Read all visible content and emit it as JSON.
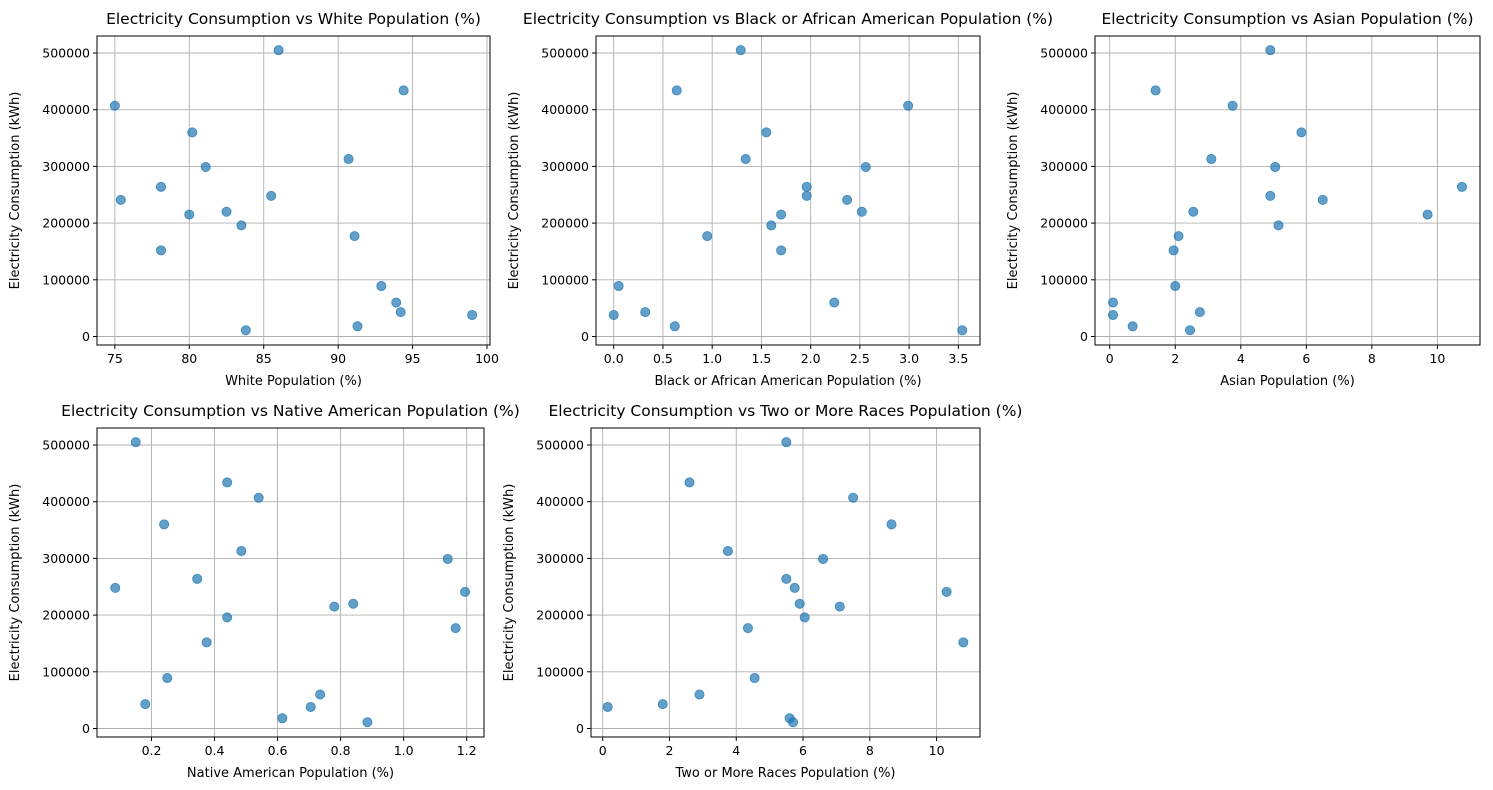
{
  "chart_data": [
    {
      "type": "scatter",
      "title": "Electricity Consumption vs White Population (%)",
      "xlabel": "White Population (%)",
      "ylabel": "Electricity Consumption (kWh)",
      "xlim": [
        73.8,
        100.2
      ],
      "ylim": [
        -15000,
        530000
      ],
      "xticks": [
        75,
        80,
        85,
        90,
        95,
        100
      ],
      "yticks": [
        0,
        100000,
        200000,
        300000,
        400000,
        500000
      ],
      "grid": true,
      "color": "#1f77b4",
      "points": [
        {
          "x": 75.0,
          "y": 407000
        },
        {
          "x": 75.4,
          "y": 241000
        },
        {
          "x": 78.1,
          "y": 264000
        },
        {
          "x": 78.1,
          "y": 152000
        },
        {
          "x": 80.0,
          "y": 215000
        },
        {
          "x": 80.2,
          "y": 360000
        },
        {
          "x": 81.1,
          "y": 299000
        },
        {
          "x": 82.5,
          "y": 220000
        },
        {
          "x": 83.5,
          "y": 196000
        },
        {
          "x": 83.8,
          "y": 11000
        },
        {
          "x": 85.5,
          "y": 248000
        },
        {
          "x": 86.0,
          "y": 505000
        },
        {
          "x": 90.7,
          "y": 313000
        },
        {
          "x": 91.1,
          "y": 177000
        },
        {
          "x": 91.3,
          "y": 18000
        },
        {
          "x": 92.9,
          "y": 89000
        },
        {
          "x": 93.9,
          "y": 60000
        },
        {
          "x": 94.2,
          "y": 43000
        },
        {
          "x": 94.4,
          "y": 434000
        },
        {
          "x": 99.0,
          "y": 38000
        }
      ]
    },
    {
      "type": "scatter",
      "title": "Electricity Consumption vs Black or African American Population (%)",
      "xlabel": "Black or African American Population (%)",
      "ylabel": "Electricity Consumption (kWh)",
      "xlim": [
        -0.18,
        3.72
      ],
      "ylim": [
        -15000,
        530000
      ],
      "xticks": [
        0.0,
        0.5,
        1.0,
        1.5,
        2.0,
        2.5,
        3.0,
        3.5
      ],
      "xtick_labels": [
        "0.0",
        "0.5",
        "1.0",
        "1.5",
        "2.0",
        "2.5",
        "3.0",
        "3.5"
      ],
      "yticks": [
        0,
        100000,
        200000,
        300000,
        400000,
        500000
      ],
      "grid": true,
      "color": "#1f77b4",
      "points": [
        {
          "x": 0.0,
          "y": 38000
        },
        {
          "x": 0.05,
          "y": 89000
        },
        {
          "x": 0.32,
          "y": 43000
        },
        {
          "x": 0.62,
          "y": 18000
        },
        {
          "x": 0.64,
          "y": 434000
        },
        {
          "x": 0.95,
          "y": 177000
        },
        {
          "x": 1.29,
          "y": 505000
        },
        {
          "x": 1.34,
          "y": 313000
        },
        {
          "x": 1.55,
          "y": 360000
        },
        {
          "x": 1.6,
          "y": 196000
        },
        {
          "x": 1.7,
          "y": 215000
        },
        {
          "x": 1.7,
          "y": 152000
        },
        {
          "x": 1.96,
          "y": 264000
        },
        {
          "x": 1.96,
          "y": 248000
        },
        {
          "x": 2.24,
          "y": 60000
        },
        {
          "x": 2.37,
          "y": 241000
        },
        {
          "x": 2.52,
          "y": 220000
        },
        {
          "x": 2.56,
          "y": 299000
        },
        {
          "x": 2.99,
          "y": 407000
        },
        {
          "x": 3.54,
          "y": 11000
        }
      ]
    },
    {
      "type": "scatter",
      "title": "Electricity Consumption vs Asian Population (%)",
      "xlabel": "Asian Population (%)",
      "ylabel": "Electricity Consumption (kWh)",
      "xlim": [
        -0.45,
        11.3
      ],
      "ylim": [
        -15000,
        530000
      ],
      "xticks": [
        0,
        2,
        4,
        6,
        8,
        10
      ],
      "yticks": [
        0,
        100000,
        200000,
        300000,
        400000,
        500000
      ],
      "grid": true,
      "color": "#1f77b4",
      "points": [
        {
          "x": 0.1,
          "y": 60000
        },
        {
          "x": 0.1,
          "y": 38000
        },
        {
          "x": 0.7,
          "y": 18000
        },
        {
          "x": 1.4,
          "y": 434000
        },
        {
          "x": 1.95,
          "y": 152000
        },
        {
          "x": 2.0,
          "y": 89000
        },
        {
          "x": 2.1,
          "y": 177000
        },
        {
          "x": 2.45,
          "y": 11000
        },
        {
          "x": 2.55,
          "y": 220000
        },
        {
          "x": 2.75,
          "y": 43000
        },
        {
          "x": 3.1,
          "y": 313000
        },
        {
          "x": 3.75,
          "y": 407000
        },
        {
          "x": 4.9,
          "y": 505000
        },
        {
          "x": 4.9,
          "y": 248000
        },
        {
          "x": 5.05,
          "y": 299000
        },
        {
          "x": 5.15,
          "y": 196000
        },
        {
          "x": 5.85,
          "y": 360000
        },
        {
          "x": 6.5,
          "y": 241000
        },
        {
          "x": 9.7,
          "y": 215000
        },
        {
          "x": 10.75,
          "y": 264000
        }
      ]
    },
    {
      "type": "scatter",
      "title": "Electricity Consumption vs Native American Population (%)",
      "xlabel": "Native American Population (%)",
      "ylabel": "Electricity Consumption (kWh)",
      "xlim": [
        0.027,
        1.255
      ],
      "ylim": [
        -15000,
        530000
      ],
      "xticks": [
        0.2,
        0.4,
        0.6,
        0.8,
        1.0,
        1.2
      ],
      "xtick_labels": [
        "0.2",
        "0.4",
        "0.6",
        "0.8",
        "1.0",
        "1.2"
      ],
      "yticks": [
        0,
        100000,
        200000,
        300000,
        400000,
        500000
      ],
      "grid": true,
      "color": "#1f77b4",
      "points": [
        {
          "x": 0.085,
          "y": 248000
        },
        {
          "x": 0.15,
          "y": 505000
        },
        {
          "x": 0.18,
          "y": 43000
        },
        {
          "x": 0.24,
          "y": 360000
        },
        {
          "x": 0.25,
          "y": 89000
        },
        {
          "x": 0.345,
          "y": 264000
        },
        {
          "x": 0.375,
          "y": 152000
        },
        {
          "x": 0.44,
          "y": 434000
        },
        {
          "x": 0.44,
          "y": 196000
        },
        {
          "x": 0.485,
          "y": 313000
        },
        {
          "x": 0.54,
          "y": 407000
        },
        {
          "x": 0.615,
          "y": 18000
        },
        {
          "x": 0.705,
          "y": 38000
        },
        {
          "x": 0.735,
          "y": 60000
        },
        {
          "x": 0.78,
          "y": 215000
        },
        {
          "x": 0.84,
          "y": 220000
        },
        {
          "x": 0.885,
          "y": 11000
        },
        {
          "x": 1.14,
          "y": 299000
        },
        {
          "x": 1.165,
          "y": 177000
        },
        {
          "x": 1.195,
          "y": 241000
        }
      ]
    },
    {
      "type": "scatter",
      "title": "Electricity Consumption vs Two or More Races Population (%)",
      "xlabel": "Two or More Races Population (%)",
      "ylabel": "Electricity Consumption (kWh)",
      "xlim": [
        -0.35,
        11.3
      ],
      "ylim": [
        -15000,
        530000
      ],
      "xticks": [
        0,
        2,
        4,
        6,
        8,
        10
      ],
      "yticks": [
        0,
        100000,
        200000,
        300000,
        400000,
        500000
      ],
      "grid": true,
      "color": "#1f77b4",
      "points": [
        {
          "x": 0.15,
          "y": 38000
        },
        {
          "x": 1.8,
          "y": 43000
        },
        {
          "x": 2.6,
          "y": 434000
        },
        {
          "x": 2.9,
          "y": 60000
        },
        {
          "x": 3.75,
          "y": 313000
        },
        {
          "x": 4.35,
          "y": 177000
        },
        {
          "x": 4.55,
          "y": 89000
        },
        {
          "x": 5.5,
          "y": 505000
        },
        {
          "x": 5.5,
          "y": 264000
        },
        {
          "x": 5.6,
          "y": 18000
        },
        {
          "x": 5.7,
          "y": 11000
        },
        {
          "x": 5.75,
          "y": 248000
        },
        {
          "x": 5.9,
          "y": 220000
        },
        {
          "x": 6.05,
          "y": 196000
        },
        {
          "x": 6.6,
          "y": 299000
        },
        {
          "x": 7.1,
          "y": 215000
        },
        {
          "x": 7.5,
          "y": 407000
        },
        {
          "x": 8.65,
          "y": 360000
        },
        {
          "x": 10.3,
          "y": 241000
        },
        {
          "x": 10.8,
          "y": 152000
        }
      ]
    }
  ]
}
